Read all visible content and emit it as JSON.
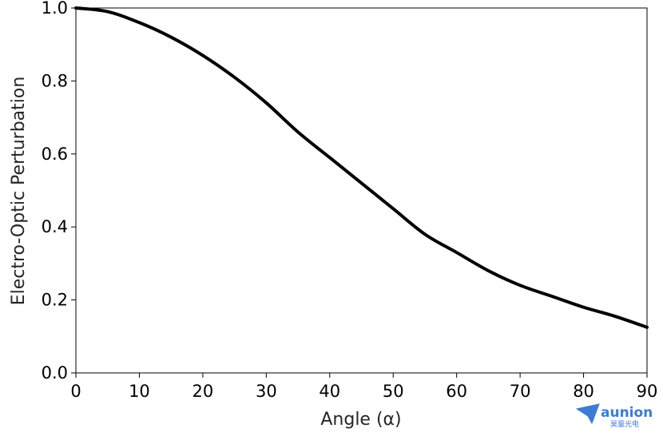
{
  "chart_data": {
    "type": "line",
    "title": "",
    "xlabel": "Angle (α)",
    "ylabel": "Electro-Optic Perturbation",
    "xlim": [
      0,
      90
    ],
    "ylim": [
      0.0,
      1.0
    ],
    "xticks": [
      0,
      10,
      20,
      30,
      40,
      50,
      60,
      70,
      80,
      90
    ],
    "xtick_labels": [
      "0",
      "10",
      "20",
      "30",
      "40",
      "50",
      "60",
      "70",
      "80",
      "90"
    ],
    "yticks": [
      0.0,
      0.2,
      0.4,
      0.6,
      0.8,
      1.0
    ],
    "ytick_labels": [
      "0.0",
      "0.2",
      "0.4",
      "0.6",
      "0.8",
      "1.0"
    ],
    "grid": false,
    "legend": "none",
    "series": [
      {
        "color": "#000000",
        "x": [
          0,
          5,
          10,
          15,
          20,
          25,
          30,
          35,
          40,
          45,
          50,
          55,
          60,
          65,
          70,
          75,
          80,
          85,
          90
        ],
        "y": [
          1.0,
          0.99,
          0.96,
          0.92,
          0.87,
          0.81,
          0.74,
          0.66,
          0.59,
          0.52,
          0.45,
          0.38,
          0.33,
          0.28,
          0.24,
          0.21,
          0.18,
          0.155,
          0.125
        ]
      }
    ]
  },
  "watermark": {
    "brand": "aunion",
    "subtitle": "昊量光电",
    "icon": "paper-plane-icon",
    "color": "#3d7bd4"
  }
}
